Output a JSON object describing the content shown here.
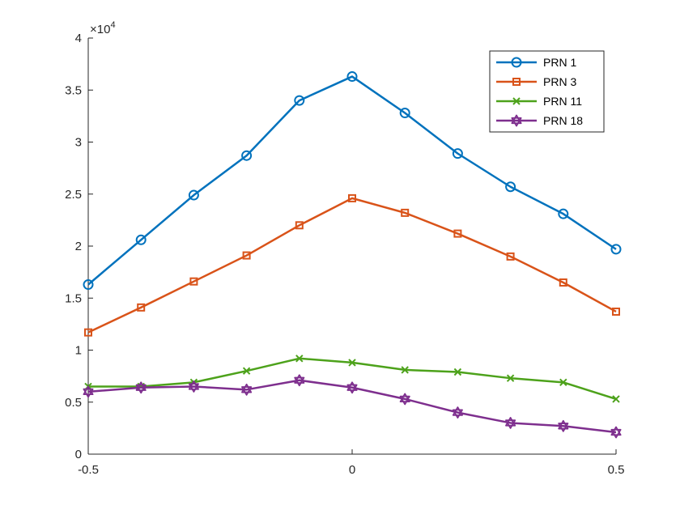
{
  "chart_data": {
    "type": "line",
    "x": [
      -0.5,
      -0.4,
      -0.3,
      -0.2,
      -0.1,
      0,
      0.1,
      0.2,
      0.3,
      0.4,
      0.5
    ],
    "xlim": [
      -0.5,
      0.5
    ],
    "ylim": [
      0,
      40000
    ],
    "xticks": [
      -0.5,
      0,
      0.5
    ],
    "xtick_labels": [
      "-0.5",
      "0",
      "0.5"
    ],
    "yticks": [
      0,
      5000,
      10000,
      15000,
      20000,
      25000,
      30000,
      35000,
      40000
    ],
    "ytick_labels": [
      "0",
      "0.5",
      "1",
      "1.5",
      "2",
      "2.5",
      "3",
      "3.5",
      "4"
    ],
    "y_exponent": {
      "base": "×10",
      "power": "4"
    },
    "grid": false,
    "legend_position": "top-right",
    "series": [
      {
        "name": "PRN 1",
        "color": "#0072BD",
        "marker": "circle",
        "values": [
          16300,
          20600,
          24900,
          28700,
          34000,
          36300,
          32800,
          28900,
          25700,
          23100,
          19700
        ]
      },
      {
        "name": "PRN 3",
        "color": "#D95319",
        "marker": "square",
        "values": [
          11700,
          14100,
          16600,
          19100,
          22000,
          24600,
          23200,
          21200,
          19000,
          16500,
          13700
        ]
      },
      {
        "name": "PRN 11",
        "color": "#4DA21B",
        "marker": "x",
        "values": [
          6500,
          6500,
          6900,
          8000,
          9200,
          8800,
          8100,
          7900,
          7300,
          6900,
          5300
        ]
      },
      {
        "name": "PRN 18",
        "color": "#7E2F8E",
        "marker": "hexagram",
        "values": [
          6000,
          6400,
          6500,
          6200,
          7100,
          6400,
          5300,
          4000,
          3000,
          2700,
          2100
        ]
      }
    ]
  }
}
